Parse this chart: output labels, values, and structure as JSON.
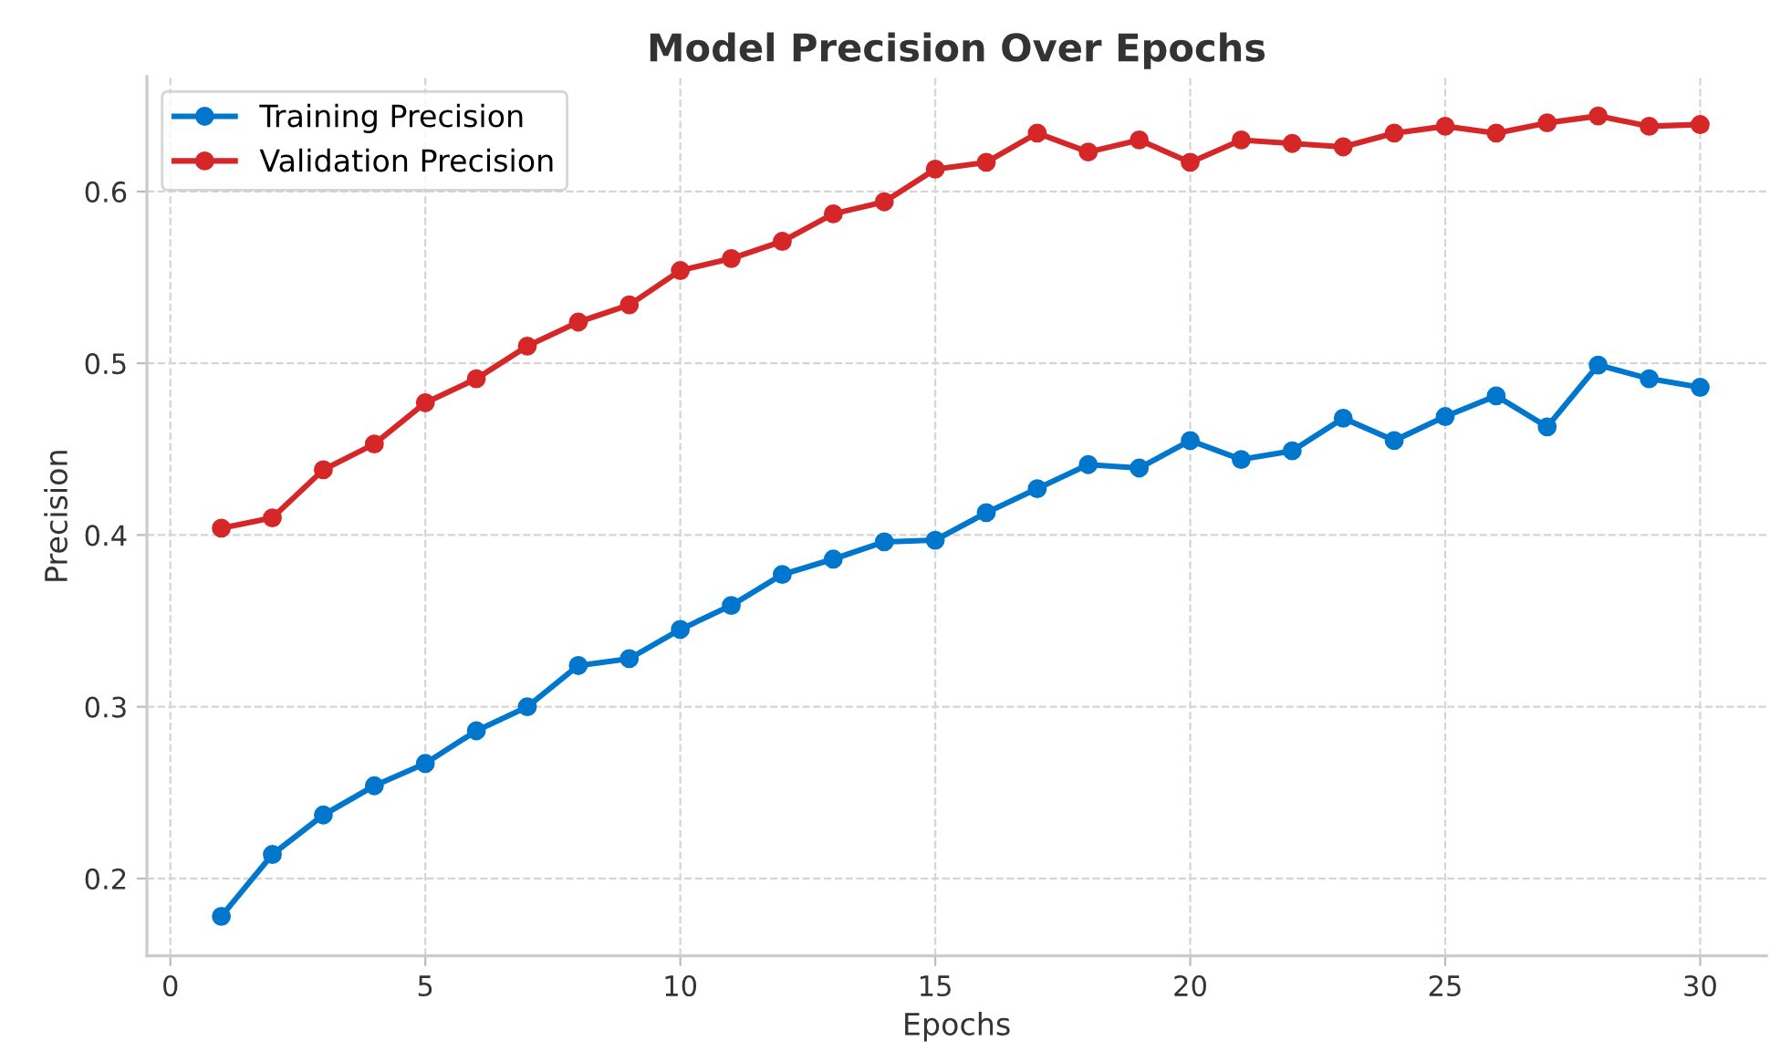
{
  "chart_data": {
    "type": "line",
    "title": "Model Precision Over Epochs",
    "xlabel": "Epochs",
    "ylabel": "Precision",
    "x": [
      1,
      2,
      3,
      4,
      5,
      6,
      7,
      8,
      9,
      10,
      11,
      12,
      13,
      14,
      15,
      16,
      17,
      18,
      19,
      20,
      21,
      22,
      23,
      24,
      25,
      26,
      27,
      28,
      29,
      30
    ],
    "series": [
      {
        "name": "Training Precision",
        "color": "#0077cc",
        "values": [
          0.178,
          0.214,
          0.237,
          0.254,
          0.267,
          0.286,
          0.3,
          0.324,
          0.328,
          0.345,
          0.359,
          0.377,
          0.386,
          0.396,
          0.397,
          0.413,
          0.427,
          0.441,
          0.439,
          0.455,
          0.444,
          0.449,
          0.468,
          0.455,
          0.469,
          0.481,
          0.463,
          0.499,
          0.491,
          0.486
        ]
      },
      {
        "name": "Validation Precision",
        "color": "#d62728",
        "values": [
          0.404,
          0.41,
          0.438,
          0.453,
          0.477,
          0.491,
          0.51,
          0.524,
          0.534,
          0.554,
          0.561,
          0.571,
          0.587,
          0.594,
          0.613,
          0.617,
          0.634,
          0.623,
          0.63,
          0.617,
          0.63,
          0.628,
          0.626,
          0.634,
          0.638,
          0.634,
          0.64,
          0.644,
          0.638,
          0.639
        ]
      }
    ],
    "xlim": [
      -0.46,
      31.3
    ],
    "ylim": [
      0.155,
      0.667
    ],
    "xticks": [
      0,
      5,
      10,
      15,
      20,
      25,
      30
    ],
    "yticks": [
      0.2,
      0.3,
      0.4,
      0.5,
      0.6
    ],
    "grid": true,
    "legend": "top left",
    "marker": "circle",
    "line_style": "solid"
  }
}
